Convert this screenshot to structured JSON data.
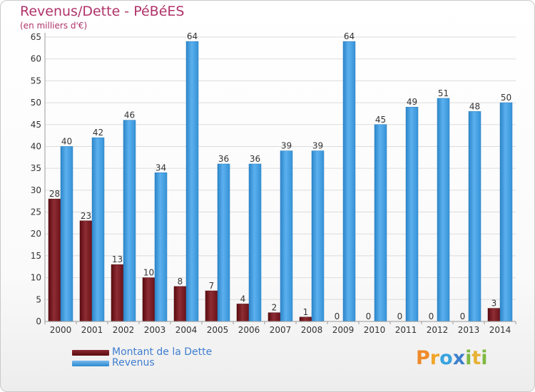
{
  "chart_data": {
    "type": "bar",
    "title": "Revenus/Dette - PéBéES",
    "subtitle": "(en milliers d'€)",
    "categories": [
      "2000",
      "2001",
      "2002",
      "2003",
      "2004",
      "2005",
      "2006",
      "2007",
      "2008",
      "2009",
      "2010",
      "2011",
      "2012",
      "2013",
      "2014"
    ],
    "series": [
      {
        "name": "Montant de la Dette",
        "values": [
          28,
          23,
          13,
          10,
          8,
          7,
          4,
          2,
          1,
          0,
          0,
          0,
          0,
          0,
          3
        ],
        "color": "#7a1c24"
      },
      {
        "name": "Revenus",
        "values": [
          40,
          42,
          46,
          34,
          64,
          36,
          36,
          39,
          39,
          64,
          45,
          49,
          51,
          48,
          50
        ],
        "color": "#3d9be3"
      }
    ],
    "yticks": [
      0,
      5,
      10,
      15,
      20,
      25,
      30,
      35,
      40,
      45,
      50,
      55,
      60,
      65
    ],
    "ylim": [
      0,
      65
    ],
    "grid": true,
    "legend": "bottom-left",
    "xlabel": "",
    "ylabel": ""
  },
  "brand": {
    "letters": [
      "P",
      "r",
      "o",
      "x",
      "i",
      "t",
      "i"
    ]
  }
}
